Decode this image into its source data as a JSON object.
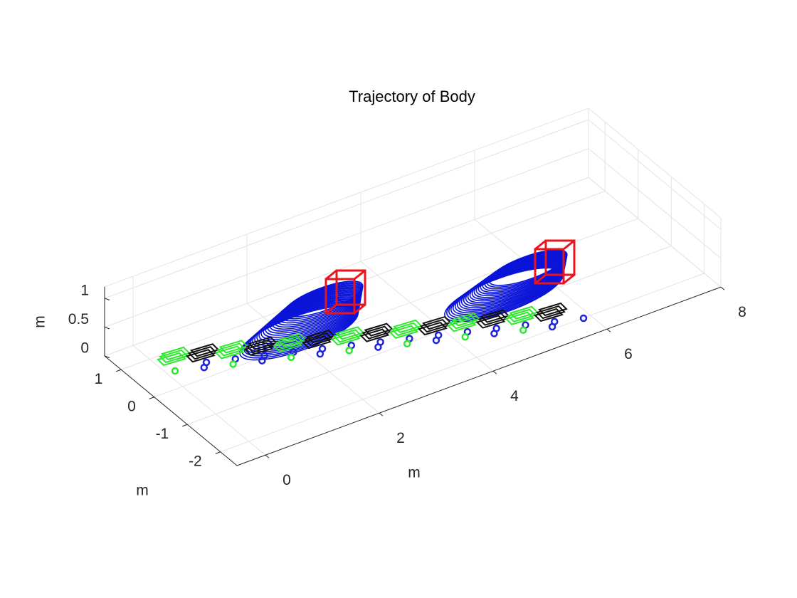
{
  "chart_data": {
    "type": "line3d",
    "title": "Trajectory of Body",
    "xlabel": "m",
    "ylabel": "m",
    "zlabel": "m",
    "xlim": [
      -0.5,
      8
    ],
    "ylim": [
      -2.5,
      1.5
    ],
    "zlim": [
      0,
      1.2
    ],
    "xticks": [
      0,
      2,
      4,
      6,
      8
    ],
    "yticks": [
      -2,
      -1,
      0,
      1
    ],
    "zticks": [
      0,
      0.5,
      1
    ],
    "grid": true
  }
}
